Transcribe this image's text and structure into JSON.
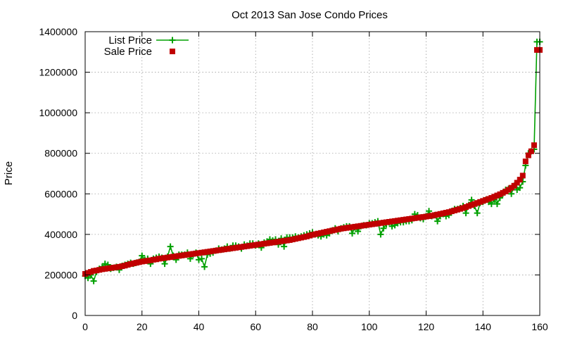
{
  "chart_data": {
    "type": "line",
    "title": "Oct 2013 San Jose Condo Prices",
    "xlabel": "",
    "ylabel": "Price",
    "xlim": [
      0,
      160
    ],
    "ylim": [
      0,
      1400000
    ],
    "xticks": [
      0,
      20,
      40,
      60,
      80,
      100,
      120,
      140,
      160
    ],
    "yticks": [
      0,
      200000,
      400000,
      600000,
      800000,
      1000000,
      1200000,
      1400000
    ],
    "grid": true,
    "legend_position": "top-left",
    "series": [
      {
        "name": "List Price",
        "color": "#00a000",
        "marker": "plus",
        "values": [
          195000,
          185000,
          200000,
          170000,
          215000,
          230000,
          240000,
          255000,
          250000,
          230000,
          235000,
          240000,
          225000,
          245000,
          250000,
          255000,
          260000,
          255000,
          260000,
          265000,
          295000,
          275000,
          280000,
          255000,
          280000,
          285000,
          290000,
          285000,
          255000,
          290000,
          340000,
          295000,
          275000,
          300000,
          300000,
          300000,
          310000,
          280000,
          300000,
          310000,
          275000,
          280000,
          240000,
          300000,
          305000,
          310000,
          320000,
          330000,
          325000,
          330000,
          340000,
          330000,
          345000,
          345000,
          340000,
          330000,
          350000,
          345000,
          355000,
          355000,
          345000,
          355000,
          335000,
          360000,
          365000,
          375000,
          370000,
          375000,
          350000,
          380000,
          340000,
          385000,
          385000,
          385000,
          390000,
          385000,
          390000,
          395000,
          400000,
          405000,
          410000,
          400000,
          395000,
          390000,
          400000,
          395000,
          405000,
          420000,
          430000,
          415000,
          430000,
          435000,
          440000,
          440000,
          405000,
          435000,
          415000,
          440000,
          445000,
          445000,
          455000,
          455000,
          460000,
          465000,
          400000,
          430000,
          450000,
          460000,
          440000,
          445000,
          455000,
          460000,
          460000,
          465000,
          465000,
          470000,
          500000,
          495000,
          480000,
          475000,
          490000,
          515000,
          490000,
          495000,
          465000,
          490000,
          500000,
          490000,
          495000,
          515000,
          525000,
          525000,
          530000,
          540000,
          505000,
          545000,
          570000,
          540000,
          505000,
          555000,
          560000,
          570000,
          560000,
          550000,
          570000,
          550000,
          580000,
          600000,
          620000,
          625000,
          600000,
          640000,
          620000,
          630000,
          660000,
          740000,
          800000,
          810000,
          820000,
          1350000,
          1350000
        ]
      },
      {
        "name": "Sale Price",
        "color": "#c00000",
        "marker": "square",
        "values": [
          205000,
          210000,
          215000,
          220000,
          222000,
          225000,
          228000,
          230000,
          232000,
          234000,
          236000,
          238000,
          240000,
          243000,
          246000,
          250000,
          254000,
          257000,
          260000,
          263000,
          266000,
          268000,
          270000,
          272000,
          275000,
          277000,
          280000,
          282000,
          284000,
          286000,
          288000,
          290000,
          292000,
          294000,
          296000,
          298000,
          300000,
          302000,
          304000,
          306000,
          308000,
          310000,
          312000,
          314000,
          316000,
          318000,
          320000,
          322000,
          324000,
          326000,
          328000,
          330000,
          332000,
          334000,
          336000,
          338000,
          340000,
          342000,
          344000,
          346000,
          348000,
          350000,
          352000,
          354000,
          356000,
          358000,
          360000,
          362000,
          364000,
          366000,
          368000,
          370000,
          372000,
          375000,
          378000,
          381000,
          384000,
          387000,
          390000,
          394000,
          398000,
          401000,
          404000,
          407000,
          410000,
          413000,
          416000,
          419000,
          422000,
          425000,
          428000,
          430000,
          432000,
          434000,
          436000,
          438000,
          440000,
          442000,
          444000,
          446000,
          448000,
          450000,
          452000,
          454000,
          456000,
          458000,
          460000,
          462000,
          464000,
          466000,
          468000,
          470000,
          472000,
          474000,
          476000,
          478000,
          480000,
          482000,
          484000,
          486000,
          488000,
          490000,
          492000,
          495000,
          498000,
          501000,
          504000,
          507000,
          510000,
          514000,
          518000,
          522000,
          526000,
          530000,
          535000,
          540000,
          545000,
          550000,
          555000,
          560000,
          565000,
          570000,
          575000,
          580000,
          586000,
          592000,
          598000,
          605000,
          612000,
          620000,
          630000,
          640000,
          655000,
          670000,
          690000,
          760000,
          790000,
          810000,
          840000,
          1310000,
          1310000
        ]
      }
    ]
  }
}
